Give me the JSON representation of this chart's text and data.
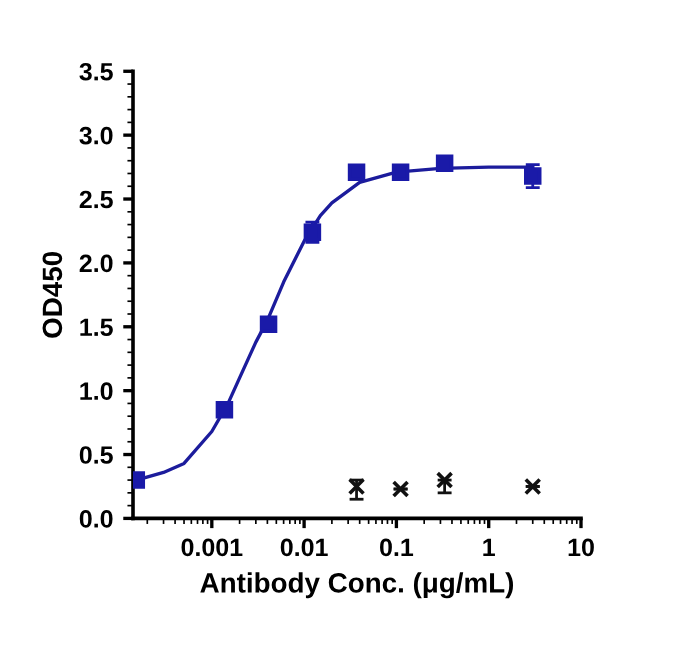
{
  "chart_data": {
    "type": "scatter",
    "xlabel": "Antibody Conc. (μg/mL)",
    "ylabel": "OD450",
    "log": "x",
    "xlim": [
      0.00014,
      10
    ],
    "xticks": [
      {
        "value": 0.001,
        "label": "0.001"
      },
      {
        "value": 0.01,
        "label": "0.01"
      },
      {
        "value": 0.1,
        "label": "0.1"
      },
      {
        "value": 1,
        "label": "1"
      },
      {
        "value": 10,
        "label": "10"
      }
    ],
    "ylim": [
      0,
      3.5
    ],
    "yticks": [
      {
        "value": 0,
        "label": "0.0"
      },
      {
        "value": 0.5,
        "label": "0.5"
      },
      {
        "value": 1,
        "label": "1.0"
      },
      {
        "value": 1.5,
        "label": "1.5"
      },
      {
        "value": 2,
        "label": "2.0"
      },
      {
        "value": 2.5,
        "label": "2.5"
      },
      {
        "value": 3,
        "label": "3.0"
      },
      {
        "value": 3.5,
        "label": "3.5"
      }
    ],
    "grid": false,
    "legend": false,
    "series": [
      {
        "type": "line",
        "color": "#1c1c9c",
        "marker": "none",
        "line_style": "solid",
        "x": [
          0.000152,
          0.0003,
          0.0005,
          0.001,
          0.0015,
          0.002,
          0.003,
          0.004,
          0.006,
          0.01,
          0.015,
          0.02,
          0.04,
          0.1,
          0.3,
          1,
          3
        ],
        "values": [
          0.3,
          0.36,
          0.43,
          0.68,
          0.9,
          1.1,
          1.38,
          1.55,
          1.85,
          2.17,
          2.37,
          2.47,
          2.63,
          2.71,
          2.74,
          2.75,
          2.75
        ]
      },
      {
        "color": "#1a1aa8",
        "marker": "square",
        "x": [
          0.000152,
          0.00137,
          0.00412,
          0.0123,
          0.037,
          0.111,
          0.333,
          3
        ],
        "values": [
          0.3,
          0.85,
          1.52,
          2.24,
          2.71,
          2.71,
          2.78,
          2.68
        ],
        "errors": [
          null,
          0.03,
          0.03,
          0.08,
          0.03,
          0.03,
          0.02,
          0.09
        ]
      },
      {
        "color": "#111111",
        "marker": "cross",
        "x": [
          0.037,
          0.111,
          0.333,
          3
        ],
        "values": [
          0.25,
          0.23,
          0.3,
          0.25
        ],
        "errors": [
          [
            0.15,
            0.3
          ],
          null,
          [
            0.2,
            0.3
          ],
          null
        ]
      }
    ]
  }
}
